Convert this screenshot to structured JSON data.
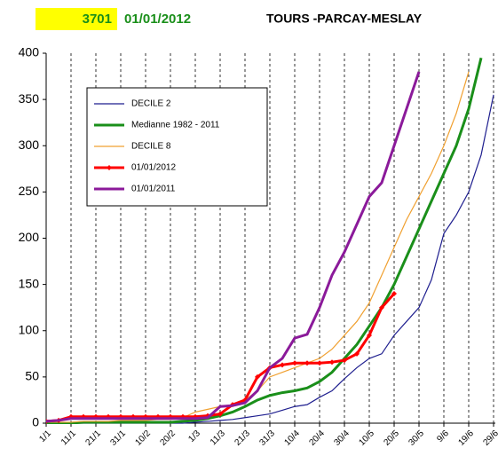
{
  "chart_data": {
    "type": "line",
    "code": "3701",
    "date": "01/01/2012",
    "title": "TOURS -PARCAY-MESLAY",
    "categories": [
      "1/1",
      null,
      "11/1",
      null,
      "21/1",
      null,
      "31/1",
      null,
      "10/2",
      null,
      "20/2",
      null,
      "1/3",
      null,
      "11/3",
      null,
      "21/3",
      null,
      "31/3",
      null,
      "10/4",
      null,
      "20/4",
      null,
      "30/4",
      null,
      "10/5",
      null,
      "20/5",
      null,
      "30/5",
      null,
      "9/6",
      null,
      "19/6",
      null,
      "29/6"
    ],
    "series": [
      {
        "name": "DECILE 2",
        "color": "#1f1f8f",
        "values": [
          0,
          0,
          0,
          0,
          0,
          0,
          0,
          0,
          0,
          0,
          0,
          0,
          1,
          2,
          3,
          4,
          6,
          8,
          10,
          14,
          18,
          20,
          28,
          35,
          48,
          60,
          70,
          75,
          95,
          110,
          125,
          155,
          205,
          225,
          250,
          290,
          355
        ]
      },
      {
        "name": "Medianne 1982 - 2011",
        "color": "#1a8f1a",
        "values": [
          0,
          0,
          0,
          1,
          1,
          1,
          1,
          1,
          1,
          1,
          1,
          2,
          3,
          5,
          8,
          12,
          18,
          25,
          30,
          33,
          35,
          38,
          45,
          55,
          70,
          85,
          105,
          125,
          150,
          180,
          210,
          240,
          270,
          300,
          340,
          395,
          null
        ]
      },
      {
        "name": "DECILE 8",
        "color": "#f0a030",
        "values": [
          1,
          1,
          1,
          2,
          2,
          2,
          3,
          3,
          3,
          4,
          4,
          6,
          12,
          15,
          18,
          20,
          25,
          35,
          50,
          55,
          60,
          65,
          70,
          80,
          95,
          110,
          130,
          160,
          190,
          220,
          245,
          270,
          300,
          335,
          380,
          null,
          null
        ]
      },
      {
        "name": "01/01/2012",
        "color": "#ff0000",
        "values": [
          2,
          3,
          7,
          7,
          7,
          7,
          7,
          7,
          7,
          7,
          7,
          7,
          7,
          8,
          10,
          20,
          25,
          50,
          60,
          63,
          65,
          65,
          65,
          66,
          68,
          75,
          95,
          125,
          140,
          null,
          null,
          null,
          null,
          null,
          null,
          null,
          null
        ]
      },
      {
        "name": "01/01/2011",
        "color": "#8b1a9a",
        "values": [
          2,
          3,
          5,
          5,
          5,
          5,
          5,
          5,
          5,
          5,
          5,
          5,
          5,
          6,
          18,
          19,
          22,
          35,
          60,
          70,
          92,
          96,
          125,
          160,
          185,
          215,
          245,
          260,
          300,
          340,
          380,
          null,
          null,
          null,
          null,
          null,
          null
        ]
      }
    ],
    "ylim": [
      0,
      400
    ],
    "yticks": [
      0,
      50,
      100,
      150,
      200,
      250,
      300,
      350,
      400
    ],
    "grid": true
  }
}
